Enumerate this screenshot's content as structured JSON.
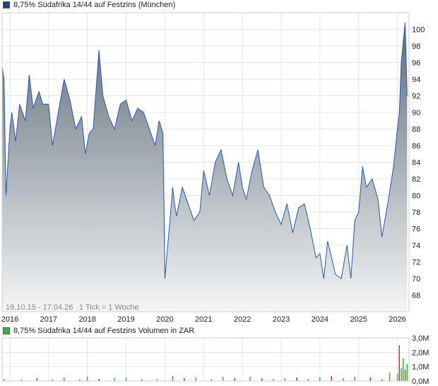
{
  "header": {
    "price_legend": "8,75% Südafrika 14/44 auf Festzins (München)",
    "volume_legend": "8,75% Südafrika 14/44 auf Festzins Volumen in ZAR"
  },
  "footnote": {
    "range": "19.10.15 - 17.04.26",
    "tick_info": "1 Tick = 1 Woche"
  },
  "colors": {
    "price_swatch": "#1f3f8f",
    "volume_swatch": "#3cb043",
    "line": "#2a56b8",
    "fill_top": "#5f6e79",
    "fill_bottom": "#f4f5f6",
    "grid": "#e6e6e6",
    "volume_up": "#3cb043",
    "volume_down": "#d03030"
  },
  "chart_data": [
    {
      "type": "area",
      "title": "8,75% Südafrika 14/44 auf Festzins (München)",
      "x_tick_labels": [
        "2016",
        "2017",
        "2018",
        "2019",
        "2020",
        "2021",
        "2022",
        "2023",
        "2024",
        "2025",
        "2026"
      ],
      "y_tick_labels": [
        "68",
        "70",
        "72",
        "74",
        "76",
        "78",
        "80",
        "82",
        "84",
        "86",
        "88",
        "90",
        "92",
        "94",
        "96",
        "98",
        "100"
      ],
      "ylim": [
        66.0,
        102.0
      ],
      "series": [
        {
          "x": [
            2015.8,
            2015.85,
            2015.9,
            2016.0,
            2016.05,
            2016.15,
            2016.25,
            2016.4,
            2016.5,
            2016.6,
            2016.75,
            2016.85,
            2017.0,
            2017.1,
            2017.25,
            2017.4,
            2017.55,
            2017.7,
            2017.85,
            2017.95,
            2018.05,
            2018.15,
            2018.3,
            2018.4,
            2018.55,
            2018.7,
            2018.85,
            2019.0,
            2019.15,
            2019.3,
            2019.45,
            2019.6,
            2019.75,
            2019.85,
            2019.95,
            2020.0,
            2020.15,
            2020.2,
            2020.25,
            2020.3,
            2020.45,
            2020.6,
            2020.75,
            2020.9,
            2021.0,
            2021.15,
            2021.3,
            2021.45,
            2021.6,
            2021.75,
            2021.9,
            2022.0,
            2022.1,
            2022.25,
            2022.4,
            2022.55,
            2022.7,
            2022.85,
            2023.0,
            2023.15,
            2023.3,
            2023.45,
            2023.6,
            2023.75,
            2023.9,
            2024.0,
            2024.1,
            2024.2,
            2024.3,
            2024.4,
            2024.55,
            2024.7,
            2024.8,
            2024.9,
            2025.0,
            2025.1,
            2025.2,
            2025.35,
            2025.5,
            2025.6,
            2025.75,
            2025.9,
            2026.0,
            2026.05,
            2026.1,
            2026.15,
            2026.2,
            2026.25
          ],
          "y": [
            95.5,
            94.0,
            80.0,
            88.0,
            90.0,
            86.5,
            91.0,
            89.0,
            94.5,
            90.5,
            92.5,
            91.0,
            91.0,
            86.0,
            90.0,
            94.0,
            91.5,
            88.0,
            89.5,
            85.0,
            87.5,
            88.0,
            97.5,
            92.0,
            89.5,
            88.0,
            91.0,
            91.5,
            89.0,
            90.5,
            90.0,
            88.0,
            86.0,
            89.0,
            87.5,
            70.0,
            78.0,
            81.0,
            79.0,
            77.5,
            81.0,
            79.0,
            77.0,
            78.0,
            83.0,
            80.0,
            84.0,
            85.5,
            82.0,
            80.0,
            84.0,
            81.0,
            79.5,
            83.0,
            85.5,
            81.0,
            80.0,
            78.0,
            76.5,
            79.0,
            75.5,
            78.5,
            79.0,
            76.0,
            72.5,
            73.0,
            70.0,
            74.5,
            72.5,
            70.5,
            70.0,
            74.0,
            70.0,
            77.0,
            78.0,
            83.5,
            81.0,
            82.0,
            79.5,
            75.0,
            79.0,
            83.5,
            88.0,
            90.0,
            96.0,
            98.5,
            100.8,
            92.0
          ]
        }
      ]
    },
    {
      "type": "bar",
      "title": "8,75% Südafrika 14/44 auf Festzins Volumen in ZAR",
      "y_tick_labels": [
        "0,0M",
        "1,0M",
        "2,0M",
        "3,0M"
      ],
      "ylim": [
        0.0,
        3.0
      ],
      "series": [
        {
          "name": "Volumen",
          "x": [
            2015.85,
            2016.3,
            2016.7,
            2017.1,
            2017.4,
            2017.8,
            2018.0,
            2018.3,
            2018.7,
            2019.0,
            2019.4,
            2019.8,
            2020.2,
            2020.5,
            2020.8,
            2021.2,
            2021.5,
            2021.8,
            2022.2,
            2022.5,
            2022.8,
            2023.1,
            2023.4,
            2023.7,
            2024.0,
            2024.3,
            2024.6,
            2024.9,
            2025.3,
            2025.6,
            2025.8,
            2026.0,
            2026.05,
            2026.1,
            2026.15,
            2026.2,
            2026.25
          ],
          "values": [
            0.15,
            0.12,
            0.2,
            0.12,
            0.25,
            0.1,
            0.3,
            0.15,
            0.2,
            0.22,
            0.12,
            0.15,
            0.35,
            0.2,
            0.25,
            0.15,
            0.3,
            0.2,
            0.3,
            0.2,
            0.15,
            0.2,
            0.25,
            0.15,
            0.25,
            0.35,
            0.2,
            0.3,
            0.25,
            0.15,
            0.6,
            0.5,
            2.5,
            0.9,
            1.6,
            0.8,
            1.2
          ],
          "direction": [
            "up",
            "up",
            "down",
            "up",
            "up",
            "down",
            "up",
            "down",
            "up",
            "up",
            "down",
            "up",
            "up",
            "down",
            "up",
            "up",
            "up",
            "down",
            "up",
            "down",
            "up",
            "up",
            "down",
            "up",
            "up",
            "down",
            "up",
            "up",
            "down",
            "up",
            "up",
            "up",
            "down",
            "up",
            "up",
            "down",
            "up"
          ]
        }
      ]
    }
  ]
}
